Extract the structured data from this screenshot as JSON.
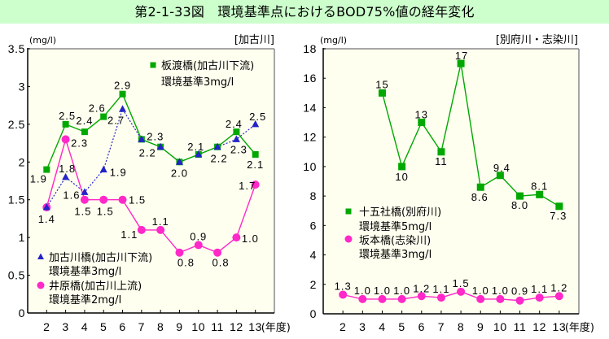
{
  "title": "第2-1-33図　環境基準点におけるBOD75%値の経年変化",
  "chart_data": [
    {
      "type": "line",
      "title": "[加古川]",
      "ylabel": "(mg/l)",
      "xlabel": "(年度)",
      "x": [
        2,
        3,
        4,
        5,
        6,
        7,
        8,
        9,
        10,
        11,
        12,
        13
      ],
      "xtick_labels": [
        "2",
        "3",
        "4",
        "5",
        "6",
        "7",
        "8",
        "9",
        "10",
        "11",
        "12",
        "13"
      ],
      "xlim": [
        1,
        14
      ],
      "ylim": [
        0,
        3.5
      ],
      "yticks": [
        0,
        0.5,
        1,
        1.5,
        2,
        2.5,
        3,
        3.5
      ],
      "ytick_labels": [
        "0",
        "0.5",
        "1",
        "1.5",
        "2",
        "2.5",
        "3",
        "3.5"
      ],
      "grid": false,
      "series": [
        {
          "name": "板渡橋(加古川下流)",
          "note": "環境基準3mg/l",
          "color": "#00a800",
          "marker": "square",
          "line": "solid",
          "legend_location": "top-right",
          "values": [
            1.9,
            2.5,
            2.4,
            2.6,
            2.9,
            2.3,
            2.2,
            2.0,
            2.1,
            2.2,
            2.4,
            2.1
          ],
          "data_labels": [
            "1.9",
            "2.5",
            "2.4",
            "2.6",
            "2.9",
            "2.3",
            "2.2",
            "2.0",
            "2.1",
            "2.2",
            "2.4",
            "2.1"
          ]
        },
        {
          "name": "加古川橋(加古川下流)",
          "note": "環境基準3mg/l",
          "color": "#2323c8",
          "marker": "triangle",
          "line": "dotted",
          "legend_location": "bottom-left",
          "values": [
            1.4,
            1.8,
            1.6,
            1.9,
            2.7,
            2.3,
            2.2,
            2.0,
            2.1,
            2.2,
            2.3,
            2.5
          ],
          "data_labels": [
            "1.4",
            "1.8",
            "1.6",
            "1.9",
            "2.7",
            null,
            null,
            null,
            null,
            null,
            "2.3",
            "2.5"
          ]
        },
        {
          "name": "井原橋(加古川上流)",
          "note": "環境基準2mg/l",
          "color": "#ff28c8",
          "marker": "circle",
          "line": "solid",
          "legend_location": "bottom-left",
          "values": [
            1.4,
            2.3,
            1.5,
            1.5,
            1.5,
            1.1,
            1.1,
            0.8,
            0.9,
            0.8,
            1.0,
            1.7
          ],
          "data_labels": [
            null,
            "2.3",
            "1.5",
            "1.5",
            "1.5",
            "1.1",
            "1.1",
            "0.8",
            "0.9",
            "0.8",
            "1.0",
            "1.7"
          ]
        }
      ]
    },
    {
      "type": "line",
      "title": "[別府川・志染川]",
      "ylabel": "(mg/l)",
      "xlabel": "(年度)",
      "x": [
        2,
        3,
        4,
        5,
        6,
        7,
        8,
        9,
        10,
        11,
        12,
        13
      ],
      "xtick_labels": [
        "2",
        "3",
        "4",
        "5",
        "6",
        "7",
        "8",
        "9",
        "10",
        "11",
        "12",
        "13"
      ],
      "xlim": [
        1,
        14
      ],
      "ylim": [
        0,
        18
      ],
      "yticks": [
        0,
        2,
        4,
        6,
        8,
        10,
        12,
        14,
        16,
        18
      ],
      "ytick_labels": [
        "0",
        "2",
        "4",
        "6",
        "8",
        "10",
        "12",
        "14",
        "16",
        "18"
      ],
      "grid": false,
      "series": [
        {
          "name": "十五社橋(別府川)",
          "note": "環境基準5mg/l",
          "color": "#00a800",
          "marker": "square",
          "line": "solid",
          "legend_location": "center-left",
          "values": [
            null,
            null,
            15,
            10,
            13,
            11,
            17,
            8.6,
            9.4,
            8.0,
            8.1,
            7.3
          ],
          "data_labels": [
            null,
            null,
            "15",
            "10",
            "13",
            "11",
            "17",
            "8.6",
            "9.4",
            "8.0",
            "8.1",
            "7.3"
          ]
        },
        {
          "name": "坂本橋(志染川)",
          "note": "環境基準3mg/l",
          "color": "#ff28c8",
          "marker": "circle",
          "line": "solid",
          "legend_location": "center-left",
          "values": [
            1.3,
            1.0,
            1.0,
            1.0,
            1.2,
            1.1,
            1.5,
            1.0,
            1.0,
            0.9,
            1.1,
            1.2
          ],
          "data_labels": [
            "1.3",
            "1.0",
            "1.0",
            "1.0",
            "1.2",
            "1.1",
            "1.5",
            "1.0",
            "1.0",
            "0.9",
            "1.1",
            "1.2"
          ]
        }
      ]
    }
  ]
}
